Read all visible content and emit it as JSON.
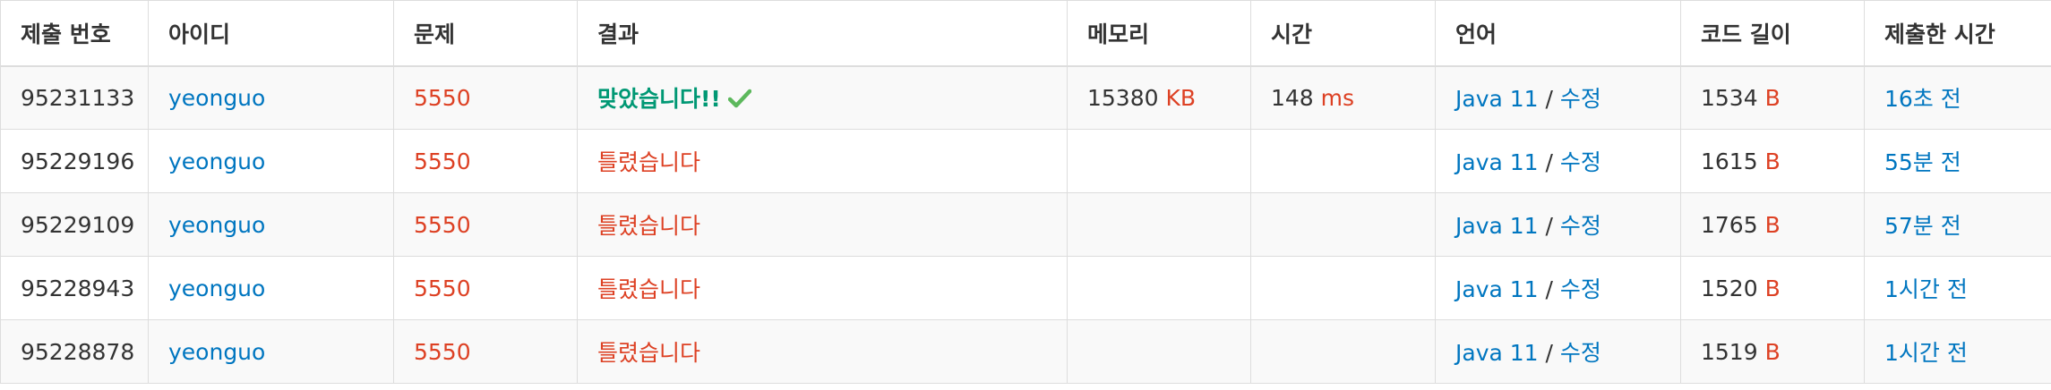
{
  "columns": {
    "submission_id": "제출 번호",
    "user": "아이디",
    "problem": "문제",
    "result": "결과",
    "memory": "메모리",
    "time": "시간",
    "language": "언어",
    "code_length": "코드 길이",
    "submitted_at": "제출한 시간"
  },
  "units": {
    "memory": "KB",
    "time": "ms",
    "code_length": "B"
  },
  "edit_label": "수정",
  "colors": {
    "link": "#0076c0",
    "problem": "#dd4124",
    "accepted": "#009874",
    "wrong": "#dd4124",
    "unit": "#dd4124"
  },
  "rows": [
    {
      "submission_id": "95231133",
      "user": "yeonguo",
      "problem": "5550",
      "result": "맞았습니다!!",
      "memory": "15380",
      "time": "148",
      "language": "Java 11",
      "code_length": "1534",
      "submitted_at": "16초 전"
    },
    {
      "submission_id": "95229196",
      "user": "yeonguo",
      "problem": "5550",
      "result": "틀렸습니다",
      "language": "Java 11",
      "code_length": "1615",
      "submitted_at": "55분 전"
    },
    {
      "submission_id": "95229109",
      "user": "yeonguo",
      "problem": "5550",
      "result": "틀렸습니다",
      "language": "Java 11",
      "code_length": "1765",
      "submitted_at": "57분 전"
    },
    {
      "submission_id": "95228943",
      "user": "yeonguo",
      "problem": "5550",
      "result": "틀렸습니다",
      "language": "Java 11",
      "code_length": "1520",
      "submitted_at": "1시간 전"
    },
    {
      "submission_id": "95228878",
      "user": "yeonguo",
      "problem": "5550",
      "result": "틀렸습니다",
      "language": "Java 11",
      "code_length": "1519",
      "submitted_at": "1시간 전"
    }
  ]
}
